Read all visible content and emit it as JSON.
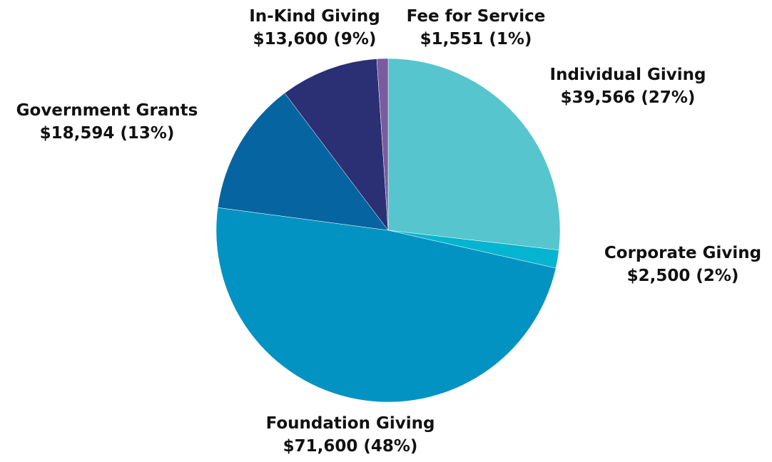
{
  "chart_data": {
    "type": "pie",
    "title": "",
    "slices": [
      {
        "name": "Individual Giving",
        "value": 39566,
        "label_value": "$39,566 (27%)",
        "color": "#56c5cd"
      },
      {
        "name": "Corporate Giving",
        "value": 2500,
        "label_value": "$2,500 (2%)",
        "color": "#05b4d0"
      },
      {
        "name": "Foundation Giving",
        "value": 71600,
        "label_value": "$71,600 (48%)",
        "color": "#0393c2"
      },
      {
        "name": "Government Grants",
        "value": 18594,
        "label_value": "$18,594 (13%)",
        "color": "#0664a0"
      },
      {
        "name": "In-Kind Giving",
        "value": 13600,
        "label_value": "$13,600 (9%)",
        "color": "#2b2f74"
      },
      {
        "name": "Fee for Service",
        "value": 1551,
        "label_value": "$1,551 (1%)",
        "color": "#7c5a9e"
      }
    ],
    "start": "12 o'clock",
    "direction": "clockwise",
    "legend": "none"
  }
}
